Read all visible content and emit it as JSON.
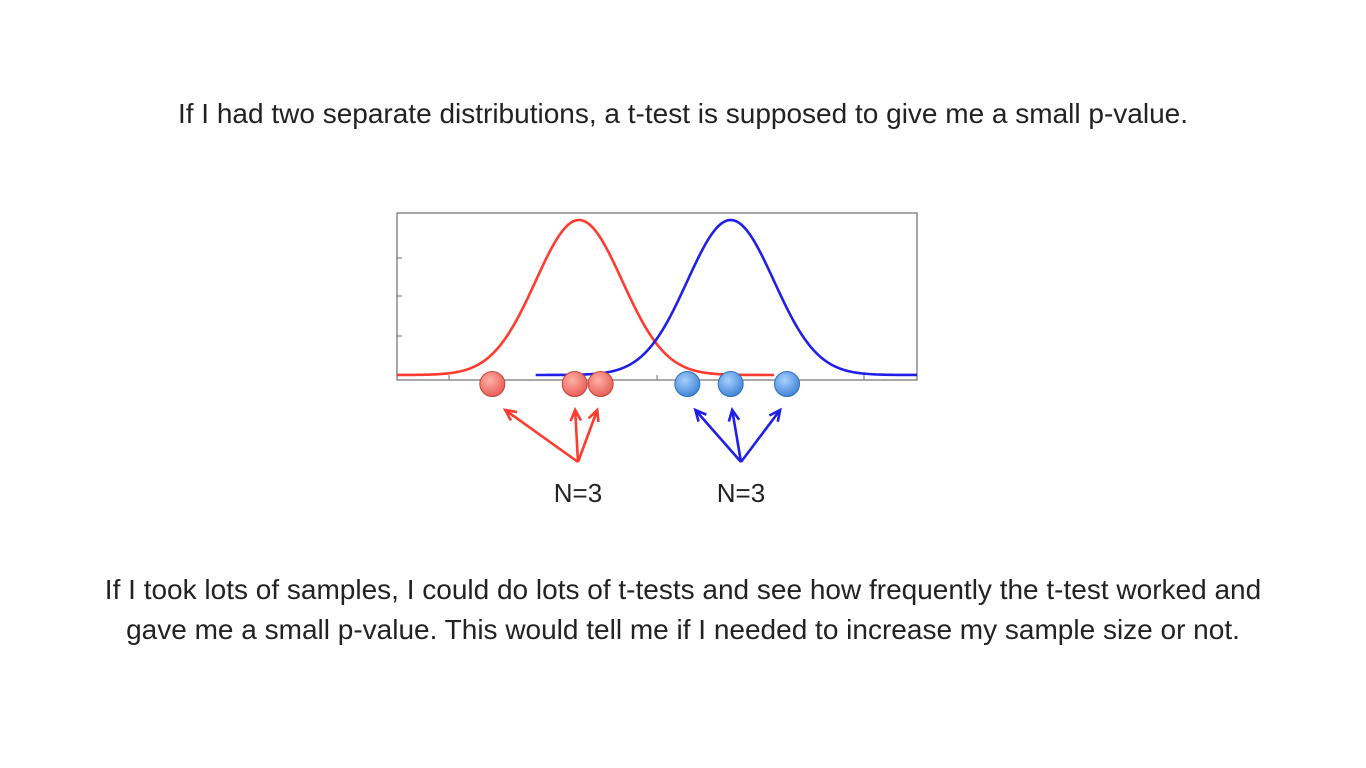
{
  "slide": {
    "heading": "If I had two separate distributions, a t-test is supposed to give me a small p-value.",
    "caption": "If I took lots of samples, I could do lots of t-tests and see how frequently the t-test worked and gave me a small p-value. This would tell me if I needed to increase my sample size or not."
  },
  "chart_data": {
    "type": "line",
    "series": [
      {
        "color": "#ff3b2f",
        "mean": 0,
        "sd": 1,
        "samples": [
          -2.0,
          -0.1,
          0.5
        ],
        "sample_color": "#f26b63",
        "n_label": "N=3"
      },
      {
        "color": "#1f1fe6",
        "mean": 3.5,
        "sd": 1,
        "samples": [
          2.5,
          3.5,
          4.8
        ],
        "sample_color": "#4a90d9",
        "n_label": "N=3"
      }
    ],
    "grid": false,
    "xlim": [
      -4.2,
      7.8
    ]
  },
  "colors": {
    "red_curve": "#ff3b2f",
    "blue_curve": "#1f1fe6",
    "frame": "#6e6e6e"
  }
}
